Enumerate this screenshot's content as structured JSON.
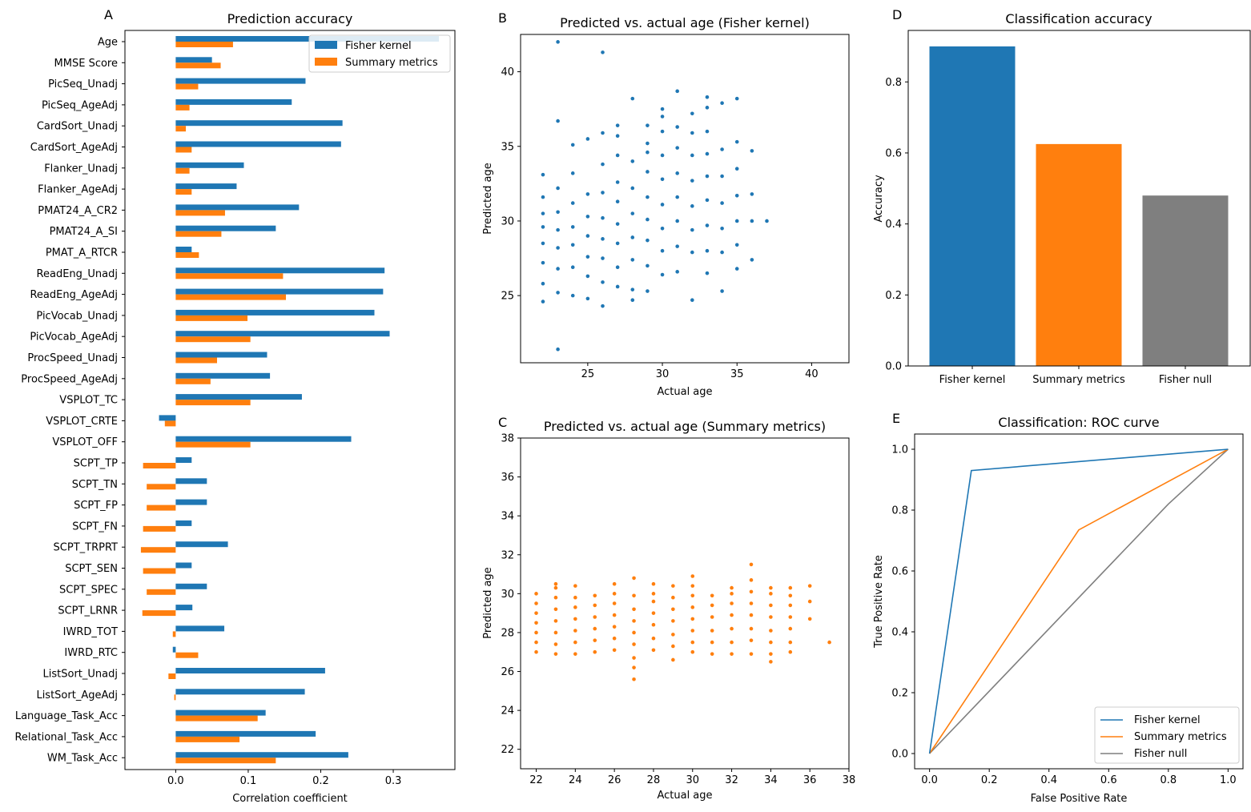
{
  "colors": {
    "fisher": "#1f77b4",
    "summary": "#ff7f0e",
    "null": "#7f7f7f"
  },
  "chart_data": [
    {
      "panel": "A",
      "type": "bar",
      "orientation": "horizontal",
      "title": "Prediction accuracy",
      "xlabel": "Correlation coefficient",
      "ylabel": "",
      "xlim": [
        -0.07,
        0.385
      ],
      "xticks": [
        "0.0",
        "0.1",
        "0.2",
        "0.3"
      ],
      "legend": {
        "placement": "top-right",
        "entries": [
          "Fisher kernel",
          "Summary metrics"
        ]
      },
      "categories": [
        "Age",
        "MMSE Score",
        "PicSeq_Unadj",
        "PicSeq_AgeAdj",
        "CardSort_Unadj",
        "CardSort_AgeAdj",
        "Flanker_Unadj",
        "Flanker_AgeAdj",
        "PMAT24_A_CR2",
        "PMAT24_A_SI",
        "PMAT_A_RTCR",
        "ReadEng_Unadj",
        "ReadEng_AgeAdj",
        "PicVocab_Unadj",
        "PicVocab_AgeAdj",
        "ProcSpeed_Unadj",
        "ProcSpeed_AgeAdj",
        "VSPLOT_TC",
        "VSPLOT_CRTE",
        "VSPLOT_OFF",
        "SCPT_TP",
        "SCPT_TN",
        "SCPT_FP",
        "SCPT_FN",
        "SCPT_TRPRT",
        "SCPT_SEN",
        "SCPT_SPEC",
        "SCPT_LRNR",
        "IWRD_TOT",
        "IWRD_RTC",
        "ListSort_Unadj",
        "ListSort_AgeAdj",
        "Language_Task_Acc",
        "Relational_Task_Acc",
        "WM_Task_Acc"
      ],
      "series": [
        {
          "name": "Fisher kernel",
          "values": [
            0.363,
            0.05,
            0.179,
            0.16,
            0.23,
            0.228,
            0.094,
            0.084,
            0.17,
            0.138,
            0.022,
            0.288,
            0.286,
            0.274,
            0.295,
            0.126,
            0.13,
            0.174,
            -0.023,
            0.242,
            0.022,
            0.043,
            0.043,
            0.022,
            0.072,
            0.022,
            0.043,
            0.023,
            0.067,
            -0.004,
            0.206,
            0.178,
            0.124,
            0.193,
            0.238
          ]
        },
        {
          "name": "Summary metrics",
          "values": [
            0.079,
            0.062,
            0.031,
            0.019,
            0.014,
            0.022,
            0.019,
            0.022,
            0.068,
            0.063,
            0.032,
            0.148,
            0.152,
            0.099,
            0.103,
            0.057,
            0.048,
            0.103,
            -0.015,
            0.103,
            -0.045,
            -0.04,
            -0.04,
            -0.045,
            -0.048,
            -0.045,
            -0.04,
            -0.046,
            -0.004,
            0.031,
            -0.01,
            -0.002,
            0.113,
            0.088,
            0.138
          ]
        }
      ]
    },
    {
      "panel": "B",
      "type": "scatter",
      "title": "Predicted vs. actual age (Fisher kernel)",
      "xlabel": "Actual age",
      "ylabel": "Predicted age",
      "xlim": [
        20.5,
        42.5
      ],
      "ylim": [
        20.5,
        42.5
      ],
      "xticks": [
        "25",
        "30",
        "35",
        "40"
      ],
      "yticks": [
        "25",
        "30",
        "35",
        "40"
      ],
      "series": [
        {
          "name": "Fisher kernel",
          "x": [
            22,
            22,
            22,
            22,
            22,
            22,
            22,
            22,
            23,
            23,
            23,
            23,
            23,
            23,
            23,
            23,
            23,
            24,
            24,
            24,
            24,
            24,
            24,
            24,
            25,
            25,
            25,
            25,
            25,
            25,
            25,
            26,
            26,
            26,
            26,
            26,
            26,
            26,
            26,
            26,
            27,
            27,
            27,
            27,
            27,
            27,
            27,
            27,
            27,
            28,
            28,
            28,
            28,
            28,
            28,
            28,
            28,
            29,
            29,
            29,
            29,
            29,
            29,
            29,
            29,
            29,
            30,
            30,
            30,
            30,
            30,
            30,
            30,
            30,
            30,
            31,
            31,
            31,
            31,
            31,
            31,
            31,
            31,
            32,
            32,
            32,
            32,
            32,
            32,
            32,
            32,
            33,
            33,
            33,
            33,
            33,
            33,
            33,
            33,
            33,
            34,
            34,
            34,
            34,
            34,
            34,
            34,
            35,
            35,
            35,
            35,
            35,
            35,
            35,
            36,
            36,
            36,
            36,
            37
          ],
          "y": [
            24.6,
            25.8,
            27.2,
            28.5,
            29.6,
            30.5,
            31.6,
            33.1,
            21.4,
            25.2,
            26.8,
            28.2,
            29.4,
            30.6,
            32.2,
            36.7,
            42.0,
            25.0,
            26.9,
            28.4,
            29.6,
            31.2,
            33.2,
            35.1,
            24.8,
            26.3,
            27.6,
            29.0,
            30.3,
            31.8,
            35.5,
            24.3,
            25.9,
            27.5,
            28.8,
            30.2,
            31.9,
            33.8,
            35.9,
            41.3,
            25.6,
            26.9,
            28.5,
            29.8,
            31.3,
            32.6,
            34.4,
            35.7,
            36.4,
            24.7,
            25.4,
            27.4,
            28.9,
            30.5,
            32.2,
            34.0,
            38.2,
            25.3,
            27.0,
            28.7,
            30.1,
            31.6,
            33.3,
            34.6,
            35.2,
            36.4,
            26.4,
            28.0,
            29.5,
            31.1,
            32.8,
            34.4,
            36.0,
            37.0,
            37.5,
            26.6,
            28.3,
            30.0,
            31.6,
            33.2,
            34.9,
            36.3,
            38.7,
            24.7,
            27.9,
            29.4,
            31.0,
            32.7,
            34.4,
            35.9,
            37.2,
            26.5,
            28.0,
            29.7,
            31.4,
            33.0,
            34.5,
            36.0,
            37.6,
            38.3,
            25.3,
            27.9,
            29.5,
            31.2,
            33.0,
            34.8,
            37.9,
            26.8,
            28.4,
            30.0,
            31.7,
            33.5,
            35.3,
            38.2,
            27.4,
            30.0,
            31.8,
            34.7,
            30.0
          ]
        }
      ]
    },
    {
      "panel": "C",
      "type": "scatter",
      "title": "Predicted vs. actual age (Summary metrics)",
      "xlabel": "Actual age",
      "ylabel": "Predicted age",
      "xlim": [
        21.2,
        38.0
      ],
      "ylim": [
        21.0,
        38.0
      ],
      "xticks": [
        "22",
        "24",
        "26",
        "28",
        "30",
        "32",
        "34",
        "36",
        "38"
      ],
      "yticks": [
        "22",
        "24",
        "26",
        "28",
        "30",
        "32",
        "34",
        "36",
        "38"
      ],
      "series": [
        {
          "name": "Summary metrics",
          "x": [
            22,
            22,
            22,
            22,
            22,
            22,
            22,
            23,
            23,
            23,
            23,
            23,
            23,
            23,
            23,
            24,
            24,
            24,
            24,
            24,
            24,
            24,
            25,
            25,
            25,
            25,
            25,
            25,
            26,
            26,
            26,
            26,
            26,
            26,
            26,
            27,
            27,
            27,
            27,
            27,
            27,
            27,
            27,
            27,
            28,
            28,
            28,
            28,
            28,
            28,
            28,
            29,
            29,
            29,
            29,
            29,
            29,
            29,
            30,
            30,
            30,
            30,
            30,
            30,
            30,
            30,
            31,
            31,
            31,
            31,
            31,
            31,
            32,
            32,
            32,
            32,
            32,
            32,
            32,
            33,
            33,
            33,
            33,
            33,
            33,
            33,
            33,
            34,
            34,
            34,
            34,
            34,
            34,
            34,
            34,
            35,
            35,
            35,
            35,
            35,
            35,
            35,
            36,
            36,
            36,
            37
          ],
          "y": [
            27.0,
            27.5,
            28.0,
            28.5,
            29.0,
            29.5,
            30.0,
            26.9,
            27.4,
            28.0,
            28.6,
            29.2,
            29.8,
            30.3,
            30.5,
            26.9,
            27.5,
            28.1,
            28.7,
            29.3,
            29.8,
            30.4,
            27.0,
            27.6,
            28.2,
            28.8,
            29.4,
            29.9,
            27.1,
            27.7,
            28.3,
            28.9,
            29.5,
            30.0,
            30.5,
            25.6,
            26.2,
            26.7,
            27.4,
            28.0,
            28.6,
            29.2,
            29.9,
            30.8,
            27.1,
            27.7,
            28.4,
            29.0,
            29.6,
            30.0,
            30.5,
            26.6,
            27.3,
            27.9,
            28.6,
            29.2,
            29.8,
            30.4,
            27.0,
            27.5,
            28.1,
            28.7,
            29.3,
            29.9,
            30.4,
            30.9,
            26.9,
            27.5,
            28.1,
            28.8,
            29.4,
            29.9,
            26.9,
            27.5,
            28.2,
            28.9,
            29.5,
            30.0,
            30.3,
            26.9,
            27.6,
            28.2,
            28.9,
            29.5,
            30.1,
            30.7,
            31.5,
            26.5,
            26.9,
            27.5,
            28.1,
            28.8,
            29.4,
            30.0,
            30.3,
            27.0,
            27.5,
            28.2,
            28.8,
            29.4,
            29.9,
            30.3,
            28.7,
            29.6,
            30.4,
            27.5
          ]
        }
      ]
    },
    {
      "panel": "D",
      "type": "bar",
      "title": "Classification accuracy",
      "xlabel": "",
      "ylabel": "Accuracy",
      "ylim": [
        0,
        0.945
      ],
      "yticks": [
        "0.0",
        "0.2",
        "0.4",
        "0.6",
        "0.8"
      ],
      "categories": [
        "Fisher kernel",
        "Summary metrics",
        "Fisher null"
      ],
      "values": [
        0.9,
        0.625,
        0.48
      ]
    },
    {
      "panel": "E",
      "type": "line",
      "title": "Classification: ROC curve",
      "xlabel": "False Positive Rate",
      "ylabel": "True Positive Rate",
      "xlim": [
        -0.05,
        1.05
      ],
      "ylim": [
        -0.05,
        1.05
      ],
      "xticks": [
        "0.0",
        "0.2",
        "0.4",
        "0.6",
        "0.8",
        "1.0"
      ],
      "yticks": [
        "0.0",
        "0.2",
        "0.4",
        "0.6",
        "0.8",
        "1.0"
      ],
      "legend": {
        "placement": "bottom-right",
        "entries": [
          "Fisher kernel",
          "Summary metrics",
          "Fisher null"
        ]
      },
      "series": [
        {
          "name": "Fisher kernel",
          "x": [
            0,
            0.14,
            1
          ],
          "y": [
            0,
            0.93,
            1
          ]
        },
        {
          "name": "Summary metrics",
          "x": [
            0,
            0.5,
            1
          ],
          "y": [
            0,
            0.735,
            1
          ]
        },
        {
          "name": "Fisher null",
          "x": [
            0,
            0.8,
            1
          ],
          "y": [
            0,
            0.82,
            1
          ]
        }
      ]
    }
  ]
}
